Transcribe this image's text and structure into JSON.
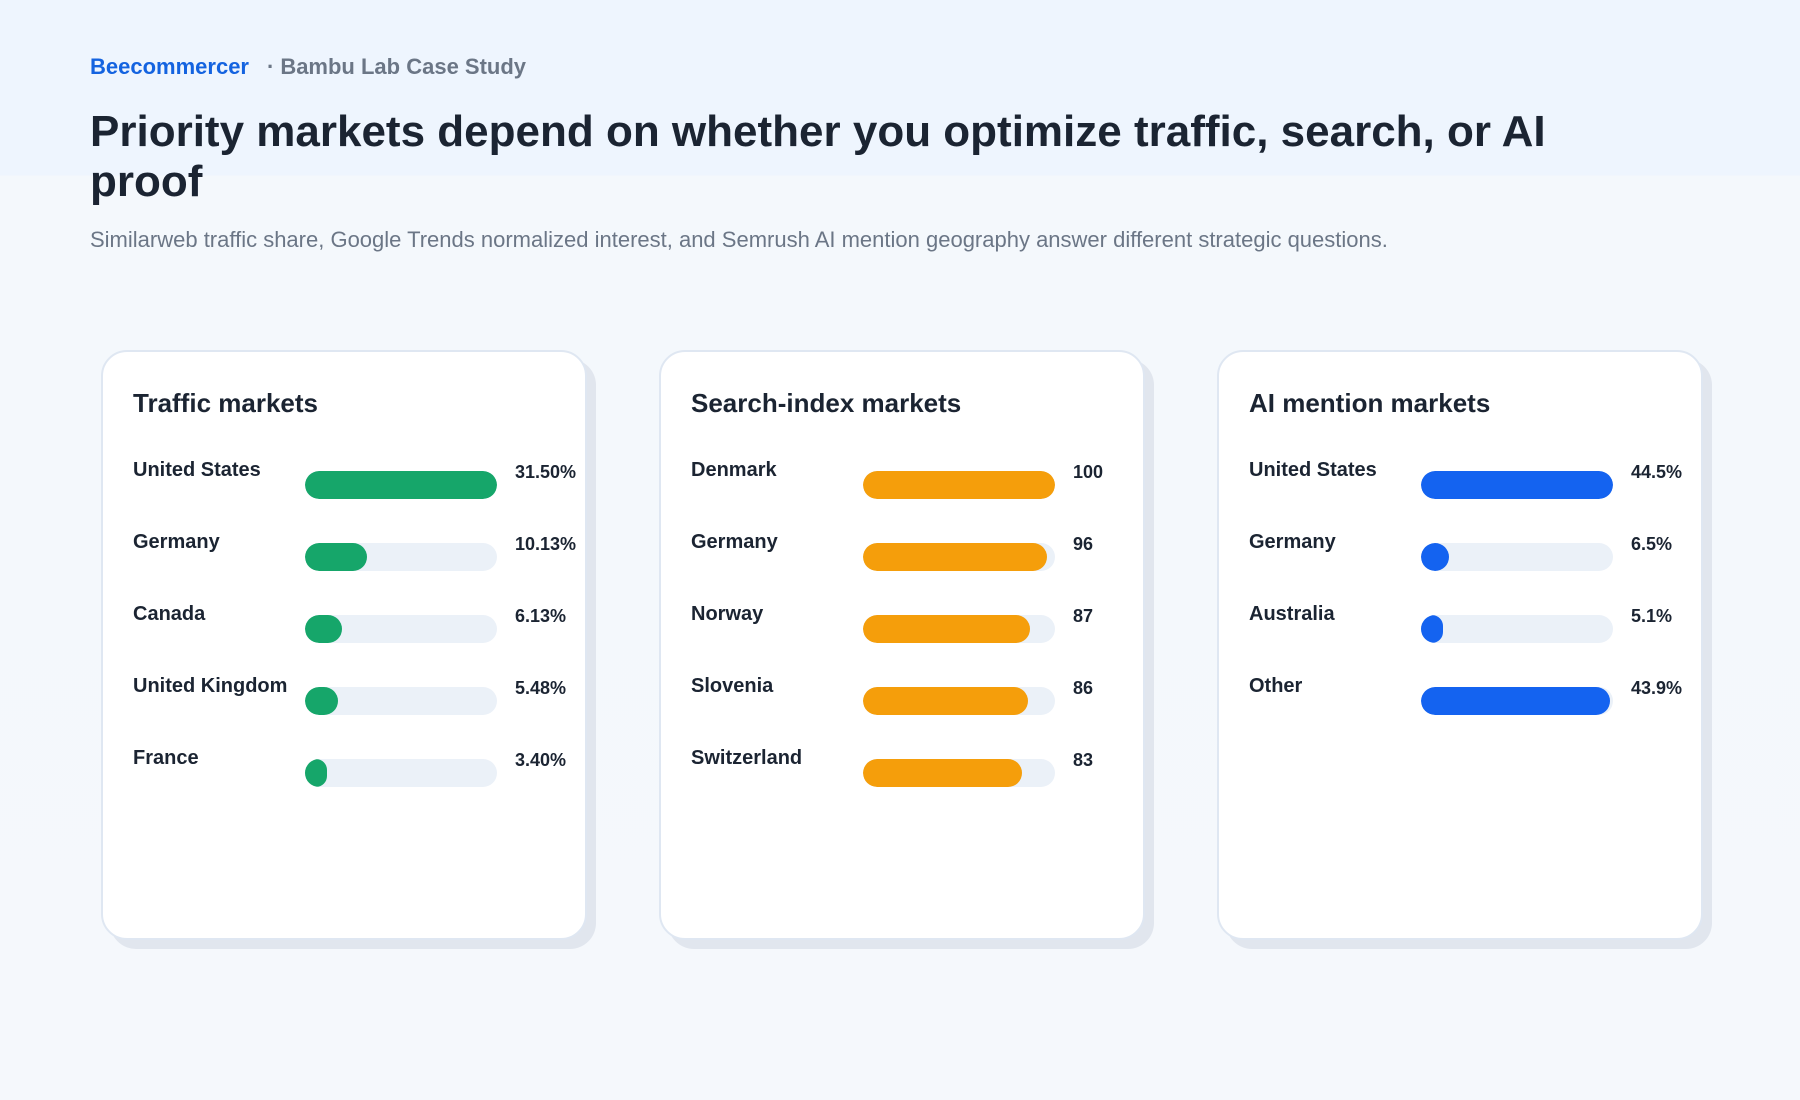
{
  "header": {
    "brand": "Beecommercer",
    "separator": "·",
    "case_study": "Bambu Lab Case Study",
    "title": "Priority markets depend on whether you optimize traffic, search, or AI proof",
    "subtitle": "Similarweb traffic share, Google Trends normalized interest, and Semrush AI mention geography answer different strategic questions."
  },
  "chart_data": [
    {
      "type": "bar",
      "orientation": "horizontal",
      "title": "Traffic markets",
      "color": "#16a66a",
      "categories": [
        "United States",
        "Germany",
        "Canada",
        "United Kingdom",
        "France"
      ],
      "values": [
        31.5,
        10.13,
        6.13,
        5.48,
        3.4
      ],
      "value_labels": [
        "31.50%",
        "10.13%",
        "6.13%",
        "5.48%",
        "3.40%"
      ],
      "xlim": [
        0,
        31.5
      ]
    },
    {
      "type": "bar",
      "orientation": "horizontal",
      "title": "Search-index markets",
      "color": "#f59e0b",
      "categories": [
        "Denmark",
        "Germany",
        "Norway",
        "Slovenia",
        "Switzerland"
      ],
      "values": [
        100,
        96,
        87,
        86,
        83
      ],
      "value_labels": [
        "100",
        "96",
        "87",
        "86",
        "83"
      ],
      "xlim": [
        0,
        100
      ]
    },
    {
      "type": "bar",
      "orientation": "horizontal",
      "title": "AI mention markets",
      "color": "#1463f0",
      "categories": [
        "United States",
        "Germany",
        "Australia",
        "Other"
      ],
      "values": [
        44.5,
        6.5,
        5.1,
        43.9
      ],
      "value_labels": [
        "44.5%",
        "6.5%",
        "5.1%",
        "43.9%"
      ],
      "xlim": [
        0,
        44.5
      ]
    }
  ]
}
